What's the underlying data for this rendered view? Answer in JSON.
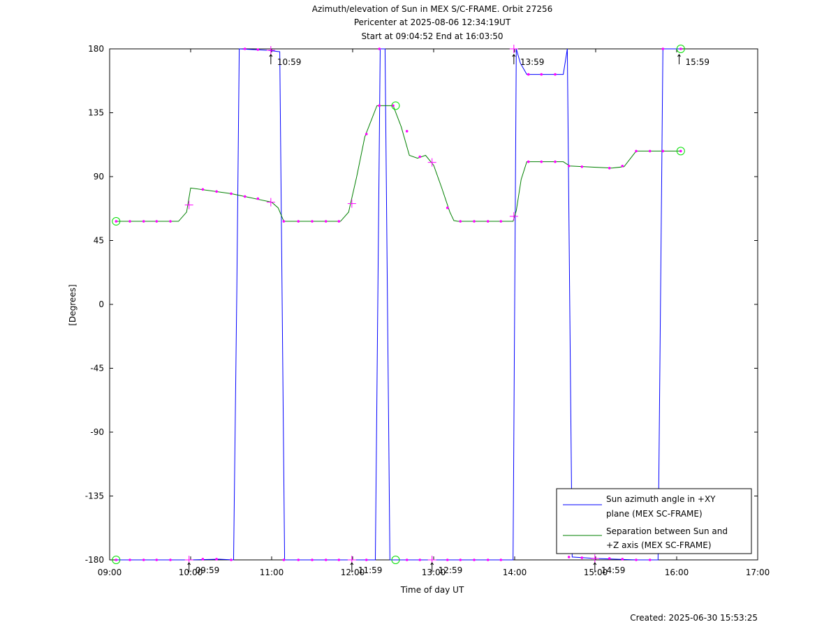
{
  "chart_data": {
    "type": "line",
    "title": [
      "Azimuth/elevation of Sun in MEX S/C-FRAME.  Orbit 27256",
      "Pericenter at 2025-08-06 12:34:19UT",
      "Start at 09:04:52 End at 16:03:50"
    ],
    "xlabel": "Time of day UT",
    "ylabel": "[Degrees]",
    "footer": "Created: 2025-06-30 15:53:25",
    "xlim": [
      9.0,
      17.0
    ],
    "ylim": [
      -180,
      180
    ],
    "xticks": [
      {
        "v": 9,
        "label": "09:00"
      },
      {
        "v": 10,
        "label": "10:00"
      },
      {
        "v": 11,
        "label": "11:00"
      },
      {
        "v": 12,
        "label": "12:00"
      },
      {
        "v": 13,
        "label": "13:00"
      },
      {
        "v": 14,
        "label": "14:00"
      },
      {
        "v": 15,
        "label": "15:00"
      },
      {
        "v": 16,
        "label": "16:00"
      },
      {
        "v": 17,
        "label": "17:00"
      }
    ],
    "yticks": [
      {
        "v": 180,
        "label": "180"
      },
      {
        "v": 135,
        "label": "135"
      },
      {
        "v": 90,
        "label": "90"
      },
      {
        "v": 45,
        "label": "45"
      },
      {
        "v": 0,
        "label": "0"
      },
      {
        "v": -45,
        "label": "-45"
      },
      {
        "v": -90,
        "label": "-90"
      },
      {
        "v": -135,
        "label": "-135"
      },
      {
        "v": -180,
        "label": "-180"
      }
    ],
    "legend_position": "bottom-right",
    "series": [
      {
        "name": "Sun azimuth angle in +XY plane (MEX SC-FRAME)",
        "color": "#0000ff",
        "segments": [
          [
            [
              9.08,
              -180
            ],
            [
              10.0,
              -180
            ],
            [
              10.35,
              -179.5
            ],
            [
              10.53,
              -180
            ],
            [
              10.57,
              10
            ],
            [
              10.6,
              180
            ],
            [
              10.95,
              179
            ],
            [
              11.1,
              178
            ],
            [
              11.13,
              0
            ],
            [
              11.16,
              -180
            ],
            [
              12.28,
              -180
            ],
            [
              12.31,
              0
            ],
            [
              12.34,
              180
            ],
            [
              12.4,
              180
            ],
            [
              12.43,
              0
            ],
            [
              12.46,
              -180
            ],
            [
              13.98,
              -180
            ],
            [
              14.0,
              0
            ],
            [
              14.02,
              180
            ],
            [
              14.07,
              170
            ],
            [
              14.15,
              162
            ],
            [
              14.6,
              162
            ],
            [
              14.65,
              180
            ],
            [
              14.68,
              0
            ],
            [
              14.71,
              -178
            ],
            [
              15.0,
              -179
            ],
            [
              15.5,
              -180
            ],
            [
              15.77,
              -180
            ],
            [
              15.8,
              0
            ],
            [
              15.83,
              180
            ],
            [
              16.05,
              180
            ]
          ]
        ]
      },
      {
        "name": "Separation between Sun and +Z axis (MEX SC-FRAME)",
        "color": "#008000",
        "points": [
          [
            9.08,
            58.5
          ],
          [
            9.85,
            58.5
          ],
          [
            9.95,
            65
          ],
          [
            10.0,
            82
          ],
          [
            10.5,
            78
          ],
          [
            11.0,
            72
          ],
          [
            11.08,
            68
          ],
          [
            11.15,
            58.5
          ],
          [
            11.85,
            58.5
          ],
          [
            11.95,
            65
          ],
          [
            12.05,
            90
          ],
          [
            12.15,
            118
          ],
          [
            12.3,
            140
          ],
          [
            12.5,
            140
          ],
          [
            12.6,
            125
          ],
          [
            12.7,
            105
          ],
          [
            12.8,
            103
          ],
          [
            12.9,
            105
          ],
          [
            13.0,
            98
          ],
          [
            13.1,
            82
          ],
          [
            13.2,
            65
          ],
          [
            13.25,
            59
          ],
          [
            13.3,
            58.5
          ],
          [
            13.98,
            58.5
          ],
          [
            14.02,
            66
          ],
          [
            14.08,
            88
          ],
          [
            14.15,
            100.5
          ],
          [
            14.6,
            100.5
          ],
          [
            14.68,
            97.5
          ],
          [
            15.2,
            96
          ],
          [
            15.35,
            97
          ],
          [
            15.5,
            108
          ],
          [
            16.05,
            108
          ]
        ]
      }
    ],
    "markers": {
      "dots": [
        [
          9.08,
          58.5
        ],
        [
          9.25,
          58.5
        ],
        [
          9.42,
          58.5
        ],
        [
          9.58,
          58.5
        ],
        [
          9.75,
          58.5
        ],
        [
          10.15,
          81
        ],
        [
          10.32,
          79.5
        ],
        [
          10.5,
          78
        ],
        [
          10.67,
          76
        ],
        [
          10.83,
          74.5
        ],
        [
          11.15,
          58.5
        ],
        [
          11.33,
          58.5
        ],
        [
          11.5,
          58.5
        ],
        [
          11.67,
          58.5
        ],
        [
          11.83,
          58.5
        ],
        [
          12.17,
          120
        ],
        [
          12.33,
          140
        ],
        [
          12.5,
          140
        ],
        [
          12.67,
          122
        ],
        [
          12.83,
          104
        ],
        [
          13.17,
          68
        ],
        [
          13.33,
          58.5
        ],
        [
          13.5,
          58.5
        ],
        [
          13.67,
          58.5
        ],
        [
          13.83,
          58.5
        ],
        [
          14.17,
          100.5
        ],
        [
          14.33,
          100.5
        ],
        [
          14.5,
          100.5
        ],
        [
          14.67,
          97.5
        ],
        [
          14.83,
          97
        ],
        [
          15.17,
          96
        ],
        [
          15.33,
          97.5
        ],
        [
          15.5,
          108
        ],
        [
          15.67,
          108
        ],
        [
          15.83,
          108
        ],
        [
          16.05,
          108
        ],
        [
          9.08,
          -180
        ],
        [
          9.25,
          -180
        ],
        [
          9.42,
          -180
        ],
        [
          9.58,
          -180
        ],
        [
          9.75,
          -180
        ],
        [
          10.15,
          -179.5
        ],
        [
          10.32,
          -179.5
        ],
        [
          10.5,
          -180
        ],
        [
          10.67,
          180
        ],
        [
          10.83,
          179.5
        ],
        [
          11.15,
          -180
        ],
        [
          11.33,
          -180
        ],
        [
          11.5,
          -180
        ],
        [
          11.67,
          -180
        ],
        [
          11.83,
          -180
        ],
        [
          12.17,
          -180
        ],
        [
          12.33,
          180
        ],
        [
          12.67,
          -180
        ],
        [
          12.83,
          -180
        ],
        [
          13.17,
          -180
        ],
        [
          13.33,
          -180
        ],
        [
          13.5,
          -180
        ],
        [
          13.67,
          -180
        ],
        [
          13.83,
          -180
        ],
        [
          14.17,
          162
        ],
        [
          14.33,
          162
        ],
        [
          14.5,
          162
        ],
        [
          14.67,
          -178
        ],
        [
          14.83,
          -178.5
        ],
        [
          15.17,
          -179
        ],
        [
          15.33,
          -179.5
        ],
        [
          15.5,
          -180
        ],
        [
          15.67,
          -180
        ],
        [
          15.83,
          180
        ],
        [
          16.05,
          180
        ]
      ],
      "crosses": [
        [
          9.98,
          70
        ],
        [
          10.99,
          72
        ],
        [
          11.99,
          71
        ],
        [
          12.98,
          100
        ],
        [
          13.99,
          62
        ],
        [
          9.98,
          -180
        ],
        [
          10.99,
          179
        ],
        [
          11.99,
          -180
        ],
        [
          12.98,
          -180
        ],
        [
          13.99,
          180
        ],
        [
          14.99,
          -179
        ]
      ],
      "circles": [
        [
          9.08,
          58.5
        ],
        [
          9.08,
          -180
        ],
        [
          12.53,
          140
        ],
        [
          12.53,
          -180
        ],
        [
          16.05,
          108
        ],
        [
          16.05,
          180
        ]
      ]
    },
    "time_labels": [
      {
        "x": 9.98,
        "y": -180,
        "label": "09:59"
      },
      {
        "x": 10.99,
        "y": 178,
        "label": "10:59"
      },
      {
        "x": 11.99,
        "y": -180,
        "label": "11:59"
      },
      {
        "x": 12.98,
        "y": -180,
        "label": "12:59"
      },
      {
        "x": 13.99,
        "y": 178,
        "label": "13:59"
      },
      {
        "x": 14.99,
        "y": -180,
        "label": "14:59"
      },
      {
        "x": 16.03,
        "y": 178,
        "label": "15:59"
      }
    ]
  }
}
